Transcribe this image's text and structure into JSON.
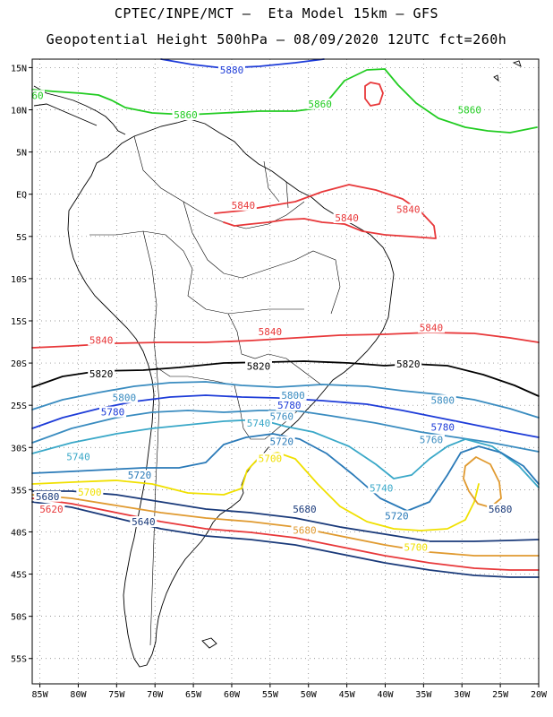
{
  "header": {
    "line1": "CPTEC/INPE/MCT –  Eta Model 15km – GFS",
    "line2": "Geopotential Height 500hPa – 08/09/2020 12UTC fct=260h"
  },
  "axes": {
    "lat_labels": [
      "15N",
      "10N",
      "5N",
      "EQ",
      "5S",
      "10S",
      "15S",
      "20S",
      "25S",
      "30S",
      "35S",
      "40S",
      "45S",
      "50S",
      "55S"
    ],
    "lon_labels": [
      "85W",
      "80W",
      "75W",
      "70W",
      "65W",
      "60W",
      "55W",
      "50W",
      "45W",
      "40W",
      "35W",
      "30W",
      "25W",
      "20W"
    ],
    "lat_values": [
      15,
      10,
      5,
      0,
      -5,
      -10,
      -15,
      -20,
      -25,
      -30,
      -35,
      -40,
      -45,
      -50,
      -55
    ],
    "lon_values": [
      -85,
      -80,
      -75,
      -70,
      -65,
      -60,
      -55,
      -50,
      -45,
      -40,
      -35,
      -30,
      -25,
      -20
    ],
    "lat_range": [
      -58,
      16
    ],
    "lon_range": [
      -86,
      -20
    ],
    "grid": "dotted"
  },
  "contour_labels": [
    {
      "text": "5880",
      "lon": -60,
      "lat": 14.5,
      "color": "#1e3cd8"
    },
    {
      "text": "5860",
      "lon": -66,
      "lat": 9.2,
      "color": "#22cc22"
    },
    {
      "text": "5860",
      "lon": -48.5,
      "lat": 10.5,
      "color": "#22cc22"
    },
    {
      "text": "5860",
      "lon": -29,
      "lat": 9.8,
      "color": "#22cc22"
    },
    {
      "text": "60",
      "lon": -85.3,
      "lat": 11.5,
      "color": "#22cc22"
    },
    {
      "text": "5840",
      "lon": -58.5,
      "lat": -1.5,
      "color": "#e8383a"
    },
    {
      "text": "5840",
      "lon": -45,
      "lat": -3.0,
      "color": "#e8383a"
    },
    {
      "text": "5840",
      "lon": -37,
      "lat": -2.0,
      "color": "#e8383a"
    },
    {
      "text": "5840",
      "lon": -77,
      "lat": -17.5,
      "color": "#e8383a"
    },
    {
      "text": "5840",
      "lon": -55,
      "lat": -16.5,
      "color": "#e8383a"
    },
    {
      "text": "5840",
      "lon": -34,
      "lat": -16.0,
      "color": "#e8383a"
    },
    {
      "text": "5820",
      "lon": -77,
      "lat": -21.5,
      "color": "#000000"
    },
    {
      "text": "5820",
      "lon": -56.5,
      "lat": -20.6,
      "color": "#000000"
    },
    {
      "text": "5820",
      "lon": -37,
      "lat": -20.3,
      "color": "#000000"
    },
    {
      "text": "5800",
      "lon": -74,
      "lat": -24.3,
      "color": "#3a8cc0"
    },
    {
      "text": "5800",
      "lon": -52,
      "lat": -24.0,
      "color": "#3a8cc0"
    },
    {
      "text": "5800",
      "lon": -32.5,
      "lat": -24.6,
      "color": "#3a8cc0"
    },
    {
      "text": "5780",
      "lon": -75.5,
      "lat": -26.0,
      "color": "#1e3cd8"
    },
    {
      "text": "5780",
      "lon": -52.5,
      "lat": -25.2,
      "color": "#1e3cd8"
    },
    {
      "text": "5780",
      "lon": -32.5,
      "lat": -27.8,
      "color": "#1e3cd8"
    },
    {
      "text": "5760",
      "lon": -53.5,
      "lat": -26.5,
      "color": "#3a8cc0"
    },
    {
      "text": "5740",
      "lon": -56.5,
      "lat": -27.3,
      "color": "#3aa8c8"
    },
    {
      "text": "5760",
      "lon": -34,
      "lat": -29.3,
      "color": "#3a8cc0"
    },
    {
      "text": "5720",
      "lon": -53.5,
      "lat": -29.5,
      "color": "#2a7ab8"
    },
    {
      "text": "5740",
      "lon": -80,
      "lat": -31.3,
      "color": "#3aa8c8"
    },
    {
      "text": "5740",
      "lon": -40.5,
      "lat": -35.0,
      "color": "#3aa8c8"
    },
    {
      "text": "5720",
      "lon": -72,
      "lat": -33.5,
      "color": "#2a7ab8"
    },
    {
      "text": "5720",
      "lon": -38.5,
      "lat": -38.3,
      "color": "#2a7ab8"
    },
    {
      "text": "5700",
      "lon": -78.5,
      "lat": -35.5,
      "color": "#f0e000"
    },
    {
      "text": "5700",
      "lon": -55,
      "lat": -31.5,
      "color": "#f0e000"
    },
    {
      "text": "5700",
      "lon": -36,
      "lat": -42.0,
      "color": "#f0e000"
    },
    {
      "text": "5680",
      "lon": -84,
      "lat": -36.0,
      "color": "#1a3a7a"
    },
    {
      "text": "5680",
      "lon": -50.5,
      "lat": -37.5,
      "color": "#1a3a7a"
    },
    {
      "text": "5680",
      "lon": -25,
      "lat": -37.5,
      "color": "#1a3a7a"
    },
    {
      "text": "5680",
      "lon": -50.5,
      "lat": -40.0,
      "color": "#e09a30"
    },
    {
      "text": "5620",
      "lon": -83.5,
      "lat": -37.5,
      "color": "#e8383a"
    },
    {
      "text": "5640",
      "lon": -71.5,
      "lat": -39.0,
      "color": "#1a3a7a"
    }
  ],
  "colors": {
    "c5880": "#1e3cd8",
    "c5860": "#22cc22",
    "c5840": "#e8383a",
    "c5820": "#000000",
    "c5800": "#3a8cc0",
    "c5780": "#1e3cd8",
    "c5760": "#3a8cc0",
    "c5740": "#3aa8c8",
    "c5720": "#2a7ab8",
    "c5700": "#f0e000",
    "c5680": "#e09a30",
    "c5660": "#1a3a7a"
  }
}
